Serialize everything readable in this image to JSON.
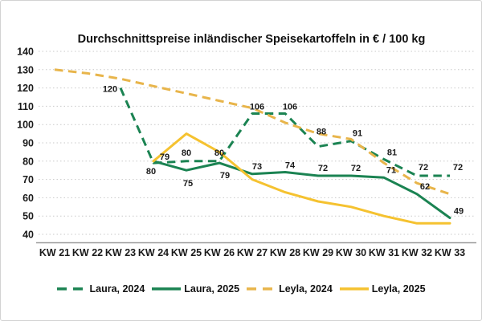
{
  "title": "Durchschnittspreise inländischer Speisekartoffeln in € / 100 kg",
  "y_axis": {
    "ticks": [
      140,
      130,
      120,
      110,
      100,
      90,
      80,
      70,
      60,
      50,
      40
    ],
    "min": 40,
    "max": 140,
    "step": 10
  },
  "x_axis": {
    "categories": [
      "KW 21",
      "KW 22",
      "KW 23",
      "KW 24",
      "KW 25",
      "KW 26",
      "KW 27",
      "KW 28",
      "KW 29",
      "KW 30",
      "KW 31",
      "KW 32",
      "KW 33"
    ]
  },
  "colors": {
    "green": "#1B8352",
    "yellow_dashed": "#E8B54B",
    "yellow_solid": "#F5C230",
    "grid": "#c9c9c9",
    "axis_line": "#9a9a9a",
    "text": "#1a1a1a"
  },
  "chart_data": {
    "type": "line",
    "title": "Durchschnittspreise inländischer Speisekartoffeln in € / 100 kg",
    "categories": [
      "KW 21",
      "KW 22",
      "KW 23",
      "KW 24",
      "KW 25",
      "KW 26",
      "KW 27",
      "KW 28",
      "KW 29",
      "KW 30",
      "KW 31",
      "KW 32",
      "KW 33"
    ],
    "ylim": [
      40,
      140
    ],
    "ytick_step": 10,
    "grid": true,
    "legend_position": "bottom",
    "series": [
      {
        "name": "Laura, 2024",
        "color": "#1B8352",
        "style": "dashed",
        "data_labels": true,
        "values": [
          null,
          null,
          120,
          79,
          80,
          80,
          106,
          106,
          88,
          91,
          81,
          72,
          72
        ],
        "label_offsets": {
          "2": [
            -13,
            5
          ],
          "3": [
            14,
            -4
          ],
          "6": [
            6,
            -5
          ],
          "7": [
            6,
            -5
          ],
          "8": [
            4,
            -15
          ],
          "9": [
            8,
            -6
          ],
          "10": [
            10,
            -5
          ],
          "11": [
            8,
            -7
          ],
          "12": [
            10,
            -7
          ]
        }
      },
      {
        "name": "Laura, 2025",
        "color": "#1B8352",
        "style": "solid",
        "data_labels": true,
        "values": [
          null,
          null,
          null,
          80,
          75,
          79,
          73,
          74,
          72,
          72,
          71,
          62,
          49
        ],
        "label_offsets": {
          "3": [
            -3,
            16
          ],
          "4": [
            2,
            20
          ],
          "5": [
            7,
            19
          ],
          "6": [
            6,
            -6
          ],
          "7": [
            6,
            -5
          ],
          "8": [
            6,
            -6
          ],
          "9": [
            6,
            -6
          ],
          "10": [
            9,
            -6
          ],
          "11": [
            10,
            -6
          ],
          "12": [
            11,
            -5
          ]
        }
      },
      {
        "name": "Leyla, 2024",
        "color": "#E8B54B",
        "style": "dashed",
        "data_labels": false,
        "values": [
          130,
          128,
          125,
          121,
          117,
          113,
          109,
          101,
          95,
          92,
          79,
          68,
          62
        ]
      },
      {
        "name": "Leyla, 2025",
        "color": "#F5C230",
        "style": "solid",
        "data_labels": false,
        "values": [
          null,
          null,
          null,
          80,
          95,
          85,
          70,
          63,
          58,
          55,
          50,
          46,
          46
        ]
      }
    ]
  }
}
